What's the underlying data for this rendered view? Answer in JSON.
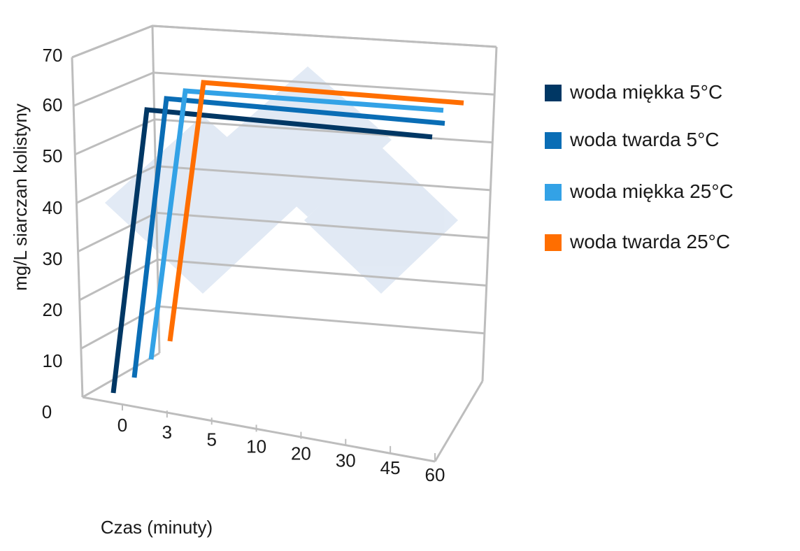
{
  "chart_data": {
    "type": "line",
    "title": "",
    "xlabel": "Czas (minuty)",
    "ylabel": "mg/L siarczan kolistyny",
    "categories": [
      "0",
      "3",
      "5",
      "10",
      "20",
      "30",
      "45",
      "60"
    ],
    "ylim": [
      0,
      70
    ],
    "yticks": [
      "0",
      "10",
      "20",
      "30",
      "40",
      "50",
      "60",
      "70"
    ],
    "grid": true,
    "legend_position": "right",
    "view": "3d",
    "series": [
      {
        "name": "woda miękka 5°C",
        "color": "#003764",
        "values": [
          null,
          5,
          60,
          null,
          null,
          null,
          null,
          56
        ]
      },
      {
        "name": "woda twarda 5°C",
        "color": "#0a6db5",
        "values": [
          null,
          5,
          60,
          null,
          null,
          null,
          null,
          57
        ]
      },
      {
        "name": "woda miękka 25°C",
        "color": "#33a2e6",
        "values": [
          null,
          5,
          60,
          null,
          null,
          null,
          null,
          57
        ]
      },
      {
        "name": "woda twarda 25°C",
        "color": "#ff6e00",
        "values": [
          null,
          5,
          60,
          null,
          null,
          null,
          null,
          56
        ]
      }
    ]
  }
}
